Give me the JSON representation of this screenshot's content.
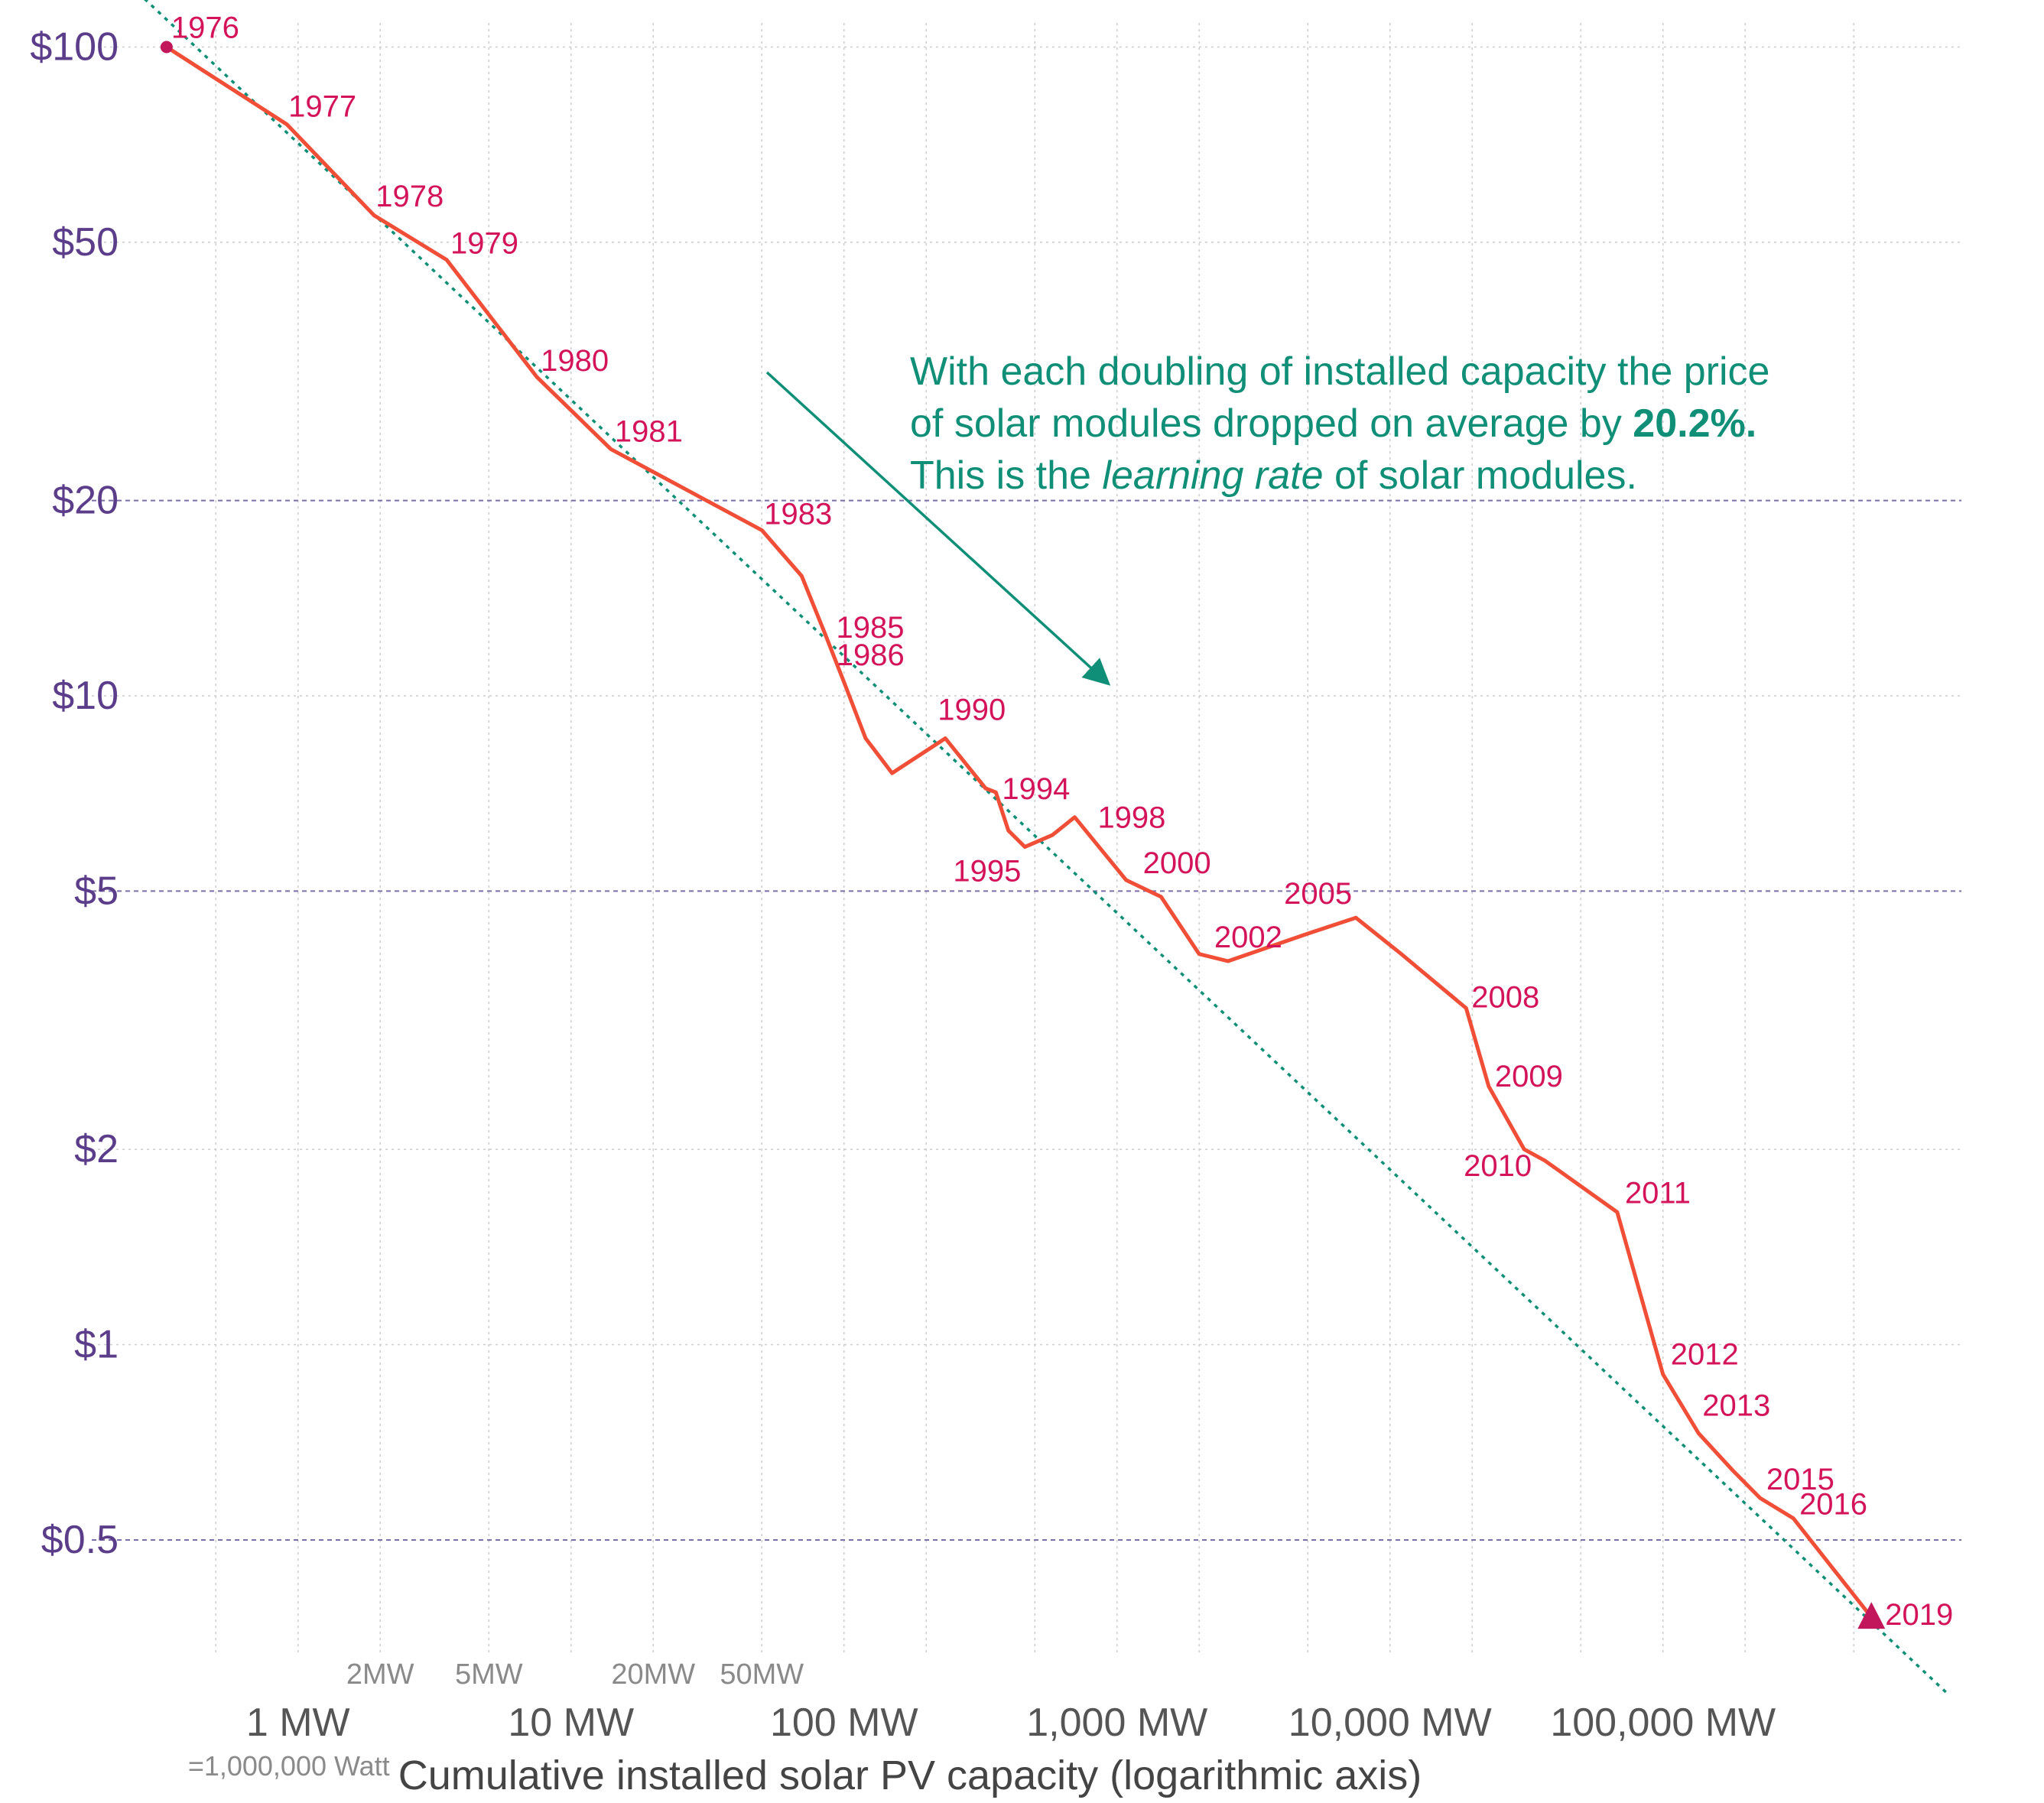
{
  "chart_data": {
    "type": "line",
    "title": "",
    "xlabel": "Cumulative installed solar PV capacity (logarithmic axis)",
    "ylabel": "",
    "x_scale": "log",
    "y_scale": "log",
    "x_unit": "MW",
    "y_unit": "$",
    "xlim": [
      0.22,
      1200000
    ],
    "ylim": [
      0.36,
      106
    ],
    "x_ticks": [
      {
        "value": 1,
        "label": "1 MW",
        "sublabel": "=1,000,000 Watt"
      },
      {
        "value": 10,
        "label": "10 MW"
      },
      {
        "value": 100,
        "label": "100 MW"
      },
      {
        "value": 1000,
        "label": "1,000 MW"
      },
      {
        "value": 10000,
        "label": "10,000 MW"
      },
      {
        "value": 100000,
        "label": "100,000 MW"
      }
    ],
    "x_minor_ticks": [
      {
        "value": 2,
        "label": "2MW"
      },
      {
        "value": 5,
        "label": "5MW"
      },
      {
        "value": 20,
        "label": "20MW"
      },
      {
        "value": 50,
        "label": "50MW"
      }
    ],
    "y_ticks": [
      {
        "value": 100,
        "label": "$100"
      },
      {
        "value": 50,
        "label": "$50"
      },
      {
        "value": 20,
        "label": "$20"
      },
      {
        "value": 10,
        "label": "$10"
      },
      {
        "value": 5,
        "label": "$5"
      },
      {
        "value": 2,
        "label": "$2"
      },
      {
        "value": 1,
        "label": "$1"
      },
      {
        "value": 0.5,
        "label": "$0.5"
      }
    ],
    "grid": true,
    "series": [
      {
        "color": "#f04e37",
        "points": [
          {
            "x": 0.33,
            "y": 100,
            "label": "1976"
          },
          {
            "x": 0.91,
            "y": 76,
            "label": "1977"
          },
          {
            "x": 1.9,
            "y": 55,
            "label": "1978"
          },
          {
            "x": 3.5,
            "y": 47,
            "label": "1979"
          },
          {
            "x": 7.5,
            "y": 31,
            "label": "1980"
          },
          {
            "x": 14,
            "y": 24,
            "label": "1981"
          },
          {
            "x": 30,
            "y": 20.2
          },
          {
            "x": 50,
            "y": 18,
            "label": "1983"
          },
          {
            "x": 70,
            "y": 15.3
          },
          {
            "x": 85,
            "y": 12.5,
            "label": "1985"
          },
          {
            "x": 100,
            "y": 10.5,
            "label": "1986"
          },
          {
            "x": 120,
            "y": 8.6
          },
          {
            "x": 150,
            "y": 7.6
          },
          {
            "x": 235,
            "y": 8.6,
            "label": "1990"
          },
          {
            "x": 330,
            "y": 7.2
          },
          {
            "x": 360,
            "y": 7.1,
            "label": "1994"
          },
          {
            "x": 400,
            "y": 6.2
          },
          {
            "x": 460,
            "y": 5.85,
            "label": "1995"
          },
          {
            "x": 580,
            "y": 6.1
          },
          {
            "x": 700,
            "y": 6.5,
            "label": "1998"
          },
          {
            "x": 1080,
            "y": 5.2,
            "label": "2000"
          },
          {
            "x": 1450,
            "y": 4.9
          },
          {
            "x": 2000,
            "y": 4.0
          },
          {
            "x": 2550,
            "y": 3.9,
            "label": "2002"
          },
          {
            "x": 5000,
            "y": 4.3
          },
          {
            "x": 7500,
            "y": 4.55,
            "label": "2005"
          },
          {
            "x": 11000,
            "y": 4.0
          },
          {
            "x": 19000,
            "y": 3.3,
            "label": "2008"
          },
          {
            "x": 23000,
            "y": 2.5,
            "label": "2009"
          },
          {
            "x": 31000,
            "y": 2.0,
            "label": "2010"
          },
          {
            "x": 37000,
            "y": 1.92
          },
          {
            "x": 68000,
            "y": 1.6,
            "label": "2011"
          },
          {
            "x": 100000,
            "y": 0.9,
            "label": "2012"
          },
          {
            "x": 135000,
            "y": 0.73,
            "label": "2013"
          },
          {
            "x": 180000,
            "y": 0.64
          },
          {
            "x": 227000,
            "y": 0.58,
            "label": "2015"
          },
          {
            "x": 300000,
            "y": 0.54,
            "label": "2016"
          },
          {
            "x": 580000,
            "y": 0.38,
            "label": "2019"
          }
        ]
      }
    ],
    "trend_line": {
      "color": "#0f8f77",
      "style": "dotted",
      "from": {
        "x": 0.165,
        "y": 145
      },
      "to": {
        "x": 1100000,
        "y": 0.29
      }
    },
    "annotation": {
      "line1": "With each doubling of installed capacity the price",
      "line2_prefix": "of solar modules dropped on average by ",
      "line2_bold": "20.2%.",
      "line3_prefix": "This is the ",
      "line3_italic": "learning rate",
      "line3_suffix": " of solar modules.",
      "color": "#0f8f77"
    },
    "colors": {
      "line": "#f04e37",
      "year_label": "#d4145a",
      "endpoint": "#c2185b",
      "y_tick": "#5b3d8a",
      "grid_major": "#7b6fa8",
      "grid_minor": "#cccccc",
      "trend": "#0f8f77"
    }
  }
}
